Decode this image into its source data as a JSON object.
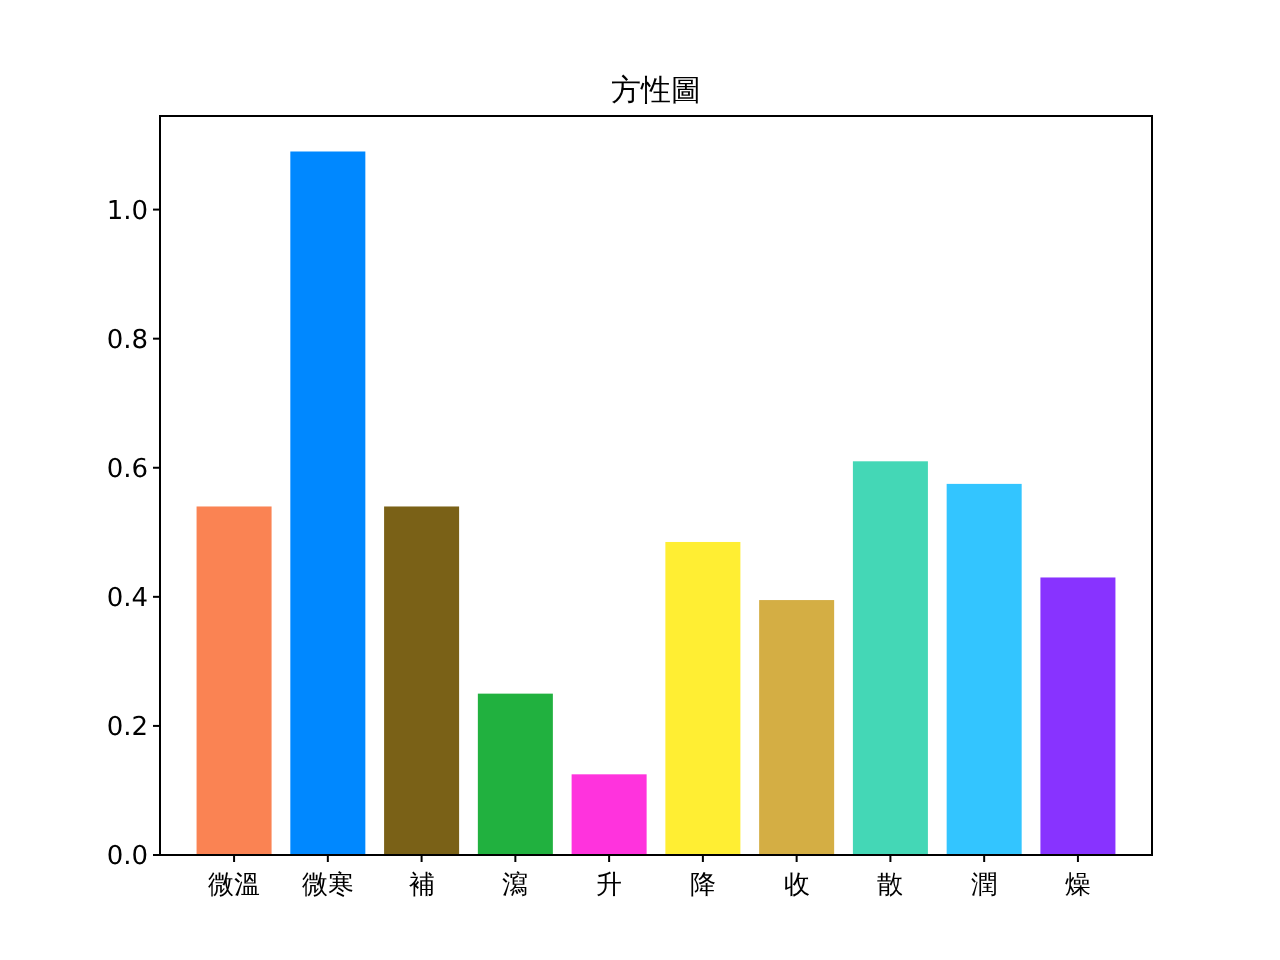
{
  "chart_data": {
    "type": "bar",
    "title": "方性圖",
    "categories": [
      "微溫",
      "微寒",
      "補",
      "瀉",
      "升",
      "降",
      "收",
      "散",
      "潤",
      "燥"
    ],
    "values": [
      0.54,
      1.09,
      0.54,
      0.25,
      0.125,
      0.485,
      0.395,
      0.61,
      0.575,
      0.43
    ],
    "colors": [
      "#fa8353",
      "#0088ff",
      "#7a6117",
      "#21b13f",
      "#ff33dd",
      "#ffee33",
      "#d4ae44",
      "#44d7b6",
      "#33c5ff",
      "#8833ff"
    ],
    "ylim": [
      0,
      1.145
    ],
    "yticks": [
      {
        "value": 0,
        "label": "0.0"
      },
      {
        "value": 0.2,
        "label": "0.2"
      },
      {
        "value": 0.4,
        "label": "0.4"
      },
      {
        "value": 0.6,
        "label": "0.6"
      },
      {
        "value": 0.8,
        "label": "0.8"
      },
      {
        "value": 1,
        "label": "1.0"
      }
    ],
    "grid": false
  }
}
